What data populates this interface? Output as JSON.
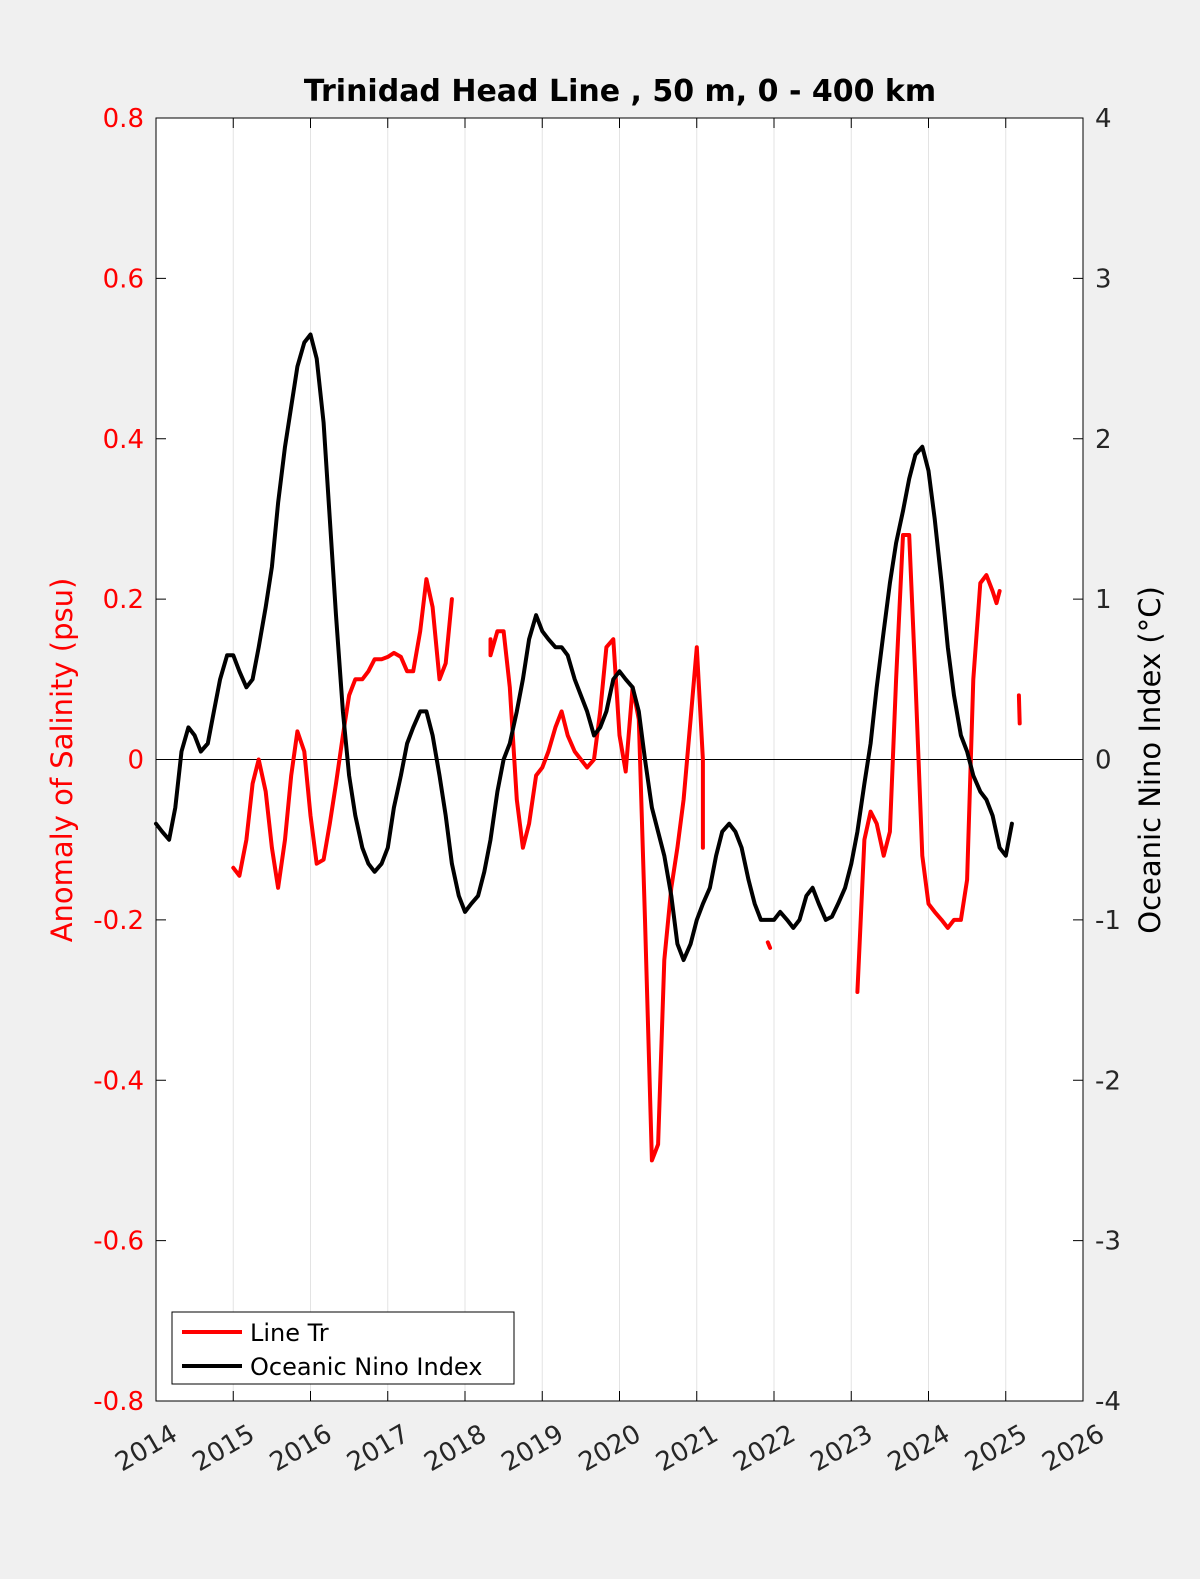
{
  "chart_data": {
    "type": "line",
    "title": "Trinidad Head Line , 50 m, 0 - 400 km",
    "xlabel": "",
    "ylabel_left": "Anomaly of Salinity (psu)",
    "ylabel_right": "Oceanic Nino Index (°C)",
    "xlim": [
      2014,
      2026
    ],
    "ylim_left": [
      -0.8,
      0.8
    ],
    "ylim_right": [
      -4,
      4
    ],
    "x_ticks": [
      2014,
      2015,
      2016,
      2017,
      2018,
      2019,
      2020,
      2021,
      2022,
      2023,
      2024,
      2025,
      2026
    ],
    "x_tick_labels": [
      "2014",
      "2015",
      "2016",
      "2017",
      "2018",
      "2019",
      "2020",
      "2021",
      "2022",
      "2023",
      "2024",
      "2025",
      "2026"
    ],
    "y_left_ticks": [
      0.8,
      0.6,
      0.4,
      0.2,
      0,
      -0.2,
      -0.4,
      -0.6,
      -0.8
    ],
    "y_left_tick_labels": [
      "0.8",
      "0.6",
      "0.4",
      "0.2",
      "0",
      "-0.2",
      "-0.4",
      "-0.6",
      "-0.8"
    ],
    "y_right_ticks": [
      4,
      3,
      2,
      1,
      0,
      -1,
      -2,
      -3,
      -4
    ],
    "y_right_tick_labels": [
      "4",
      "3",
      "2",
      "1",
      "0",
      "-1",
      "-2",
      "-3",
      "-4"
    ],
    "grid": "vertical",
    "legend_position": "bottom-left",
    "series": [
      {
        "name": "Line Tr",
        "axis": "left",
        "color": "#ff0000",
        "segments": [
          [
            [
              2015.0,
              -0.135
            ],
            [
              2015.08,
              -0.145
            ],
            [
              2015.17,
              -0.1
            ],
            [
              2015.25,
              -0.03
            ],
            [
              2015.33,
              0.0
            ],
            [
              2015.42,
              -0.04
            ],
            [
              2015.5,
              -0.11
            ],
            [
              2015.58,
              -0.16
            ],
            [
              2015.67,
              -0.1
            ],
            [
              2015.75,
              -0.02
            ],
            [
              2015.83,
              0.035
            ],
            [
              2015.92,
              0.01
            ],
            [
              2016.0,
              -0.07
            ],
            [
              2016.08,
              -0.13
            ],
            [
              2016.17,
              -0.125
            ],
            [
              2016.25,
              -0.08
            ],
            [
              2016.33,
              -0.03
            ],
            [
              2016.42,
              0.03
            ],
            [
              2016.5,
              0.08
            ],
            [
              2016.58,
              0.1
            ],
            [
              2016.67,
              0.1
            ],
            [
              2016.75,
              0.11
            ],
            [
              2016.83,
              0.125
            ],
            [
              2016.92,
              0.125
            ],
            [
              2017.0,
              0.128
            ],
            [
              2017.08,
              0.133
            ],
            [
              2017.17,
              0.128
            ],
            [
              2017.25,
              0.11
            ],
            [
              2017.33,
              0.11
            ],
            [
              2017.42,
              0.16
            ],
            [
              2017.5,
              0.225
            ],
            [
              2017.58,
              0.19
            ],
            [
              2017.67,
              0.1
            ],
            [
              2017.75,
              0.12
            ],
            [
              2017.83,
              0.2
            ]
          ],
          [
            [
              2018.33,
              0.15
            ],
            [
              2018.33,
              0.13
            ],
            [
              2018.42,
              0.16
            ],
            [
              2018.5,
              0.16
            ],
            [
              2018.58,
              0.09
            ],
            [
              2018.67,
              -0.05
            ],
            [
              2018.75,
              -0.11
            ],
            [
              2018.83,
              -0.08
            ],
            [
              2018.92,
              -0.02
            ],
            [
              2019.0,
              -0.01
            ],
            [
              2019.08,
              0.01
            ],
            [
              2019.17,
              0.04
            ],
            [
              2019.25,
              0.06
            ],
            [
              2019.33,
              0.03
            ],
            [
              2019.42,
              0.01
            ],
            [
              2019.5,
              0.0
            ],
            [
              2019.58,
              -0.01
            ],
            [
              2019.67,
              0.0
            ],
            [
              2019.75,
              0.06
            ],
            [
              2019.83,
              0.14
            ],
            [
              2019.92,
              0.15
            ],
            [
              2020.0,
              0.03
            ],
            [
              2020.08,
              -0.015
            ],
            [
              2020.17,
              0.09
            ],
            [
              2020.25,
              0.05
            ],
            [
              2020.33,
              -0.2
            ],
            [
              2020.42,
              -0.5
            ],
            [
              2020.5,
              -0.48
            ],
            [
              2020.58,
              -0.25
            ],
            [
              2020.67,
              -0.16
            ],
            [
              2020.75,
              -0.11
            ],
            [
              2020.83,
              -0.05
            ],
            [
              2020.92,
              0.05
            ],
            [
              2021.0,
              0.14
            ],
            [
              2021.08,
              0.0
            ],
            [
              2021.08,
              -0.11
            ]
          ],
          [
            [
              2021.92,
              -0.228
            ],
            [
              2021.95,
              -0.235
            ]
          ],
          [
            [
              2023.08,
              -0.29
            ],
            [
              2023.17,
              -0.1
            ],
            [
              2023.25,
              -0.065
            ],
            [
              2023.33,
              -0.08
            ],
            [
              2023.42,
              -0.12
            ],
            [
              2023.5,
              -0.09
            ],
            [
              2023.58,
              0.1
            ],
            [
              2023.67,
              0.28
            ],
            [
              2023.75,
              0.28
            ],
            [
              2023.83,
              0.1
            ],
            [
              2023.92,
              -0.12
            ],
            [
              2024.0,
              -0.18
            ],
            [
              2024.08,
              -0.19
            ],
            [
              2024.17,
              -0.2
            ],
            [
              2024.25,
              -0.21
            ],
            [
              2024.33,
              -0.2
            ],
            [
              2024.42,
              -0.2
            ],
            [
              2024.5,
              -0.15
            ],
            [
              2024.58,
              0.1
            ],
            [
              2024.67,
              0.22
            ],
            [
              2024.75,
              0.23
            ],
            [
              2024.83,
              0.21
            ],
            [
              2024.88,
              0.195
            ],
            [
              2024.92,
              0.21
            ]
          ],
          [
            [
              2025.17,
              0.08
            ],
            [
              2025.18,
              0.045
            ]
          ]
        ]
      },
      {
        "name": "Oceanic Nino Index",
        "axis": "right",
        "color": "#000000",
        "segments": [
          [
            [
              2014.0,
              -0.4
            ],
            [
              2014.08,
              -0.45
            ],
            [
              2014.17,
              -0.5
            ],
            [
              2014.25,
              -0.3
            ],
            [
              2014.33,
              0.05
            ],
            [
              2014.42,
              0.2
            ],
            [
              2014.5,
              0.15
            ],
            [
              2014.58,
              0.05
            ],
            [
              2014.67,
              0.1
            ],
            [
              2014.75,
              0.3
            ],
            [
              2014.83,
              0.5
            ],
            [
              2014.92,
              0.65
            ],
            [
              2015.0,
              0.65
            ],
            [
              2015.08,
              0.55
            ],
            [
              2015.17,
              0.45
            ],
            [
              2015.25,
              0.5
            ],
            [
              2015.33,
              0.7
            ],
            [
              2015.42,
              0.95
            ],
            [
              2015.5,
              1.2
            ],
            [
              2015.58,
              1.6
            ],
            [
              2015.67,
              1.95
            ],
            [
              2015.75,
              2.2
            ],
            [
              2015.83,
              2.45
            ],
            [
              2015.92,
              2.6
            ],
            [
              2016.0,
              2.65
            ],
            [
              2016.08,
              2.5
            ],
            [
              2016.17,
              2.1
            ],
            [
              2016.25,
              1.5
            ],
            [
              2016.33,
              0.9
            ],
            [
              2016.42,
              0.3
            ],
            [
              2016.5,
              -0.1
            ],
            [
              2016.58,
              -0.35
            ],
            [
              2016.67,
              -0.55
            ],
            [
              2016.75,
              -0.65
            ],
            [
              2016.83,
              -0.7
            ],
            [
              2016.92,
              -0.65
            ],
            [
              2017.0,
              -0.55
            ],
            [
              2017.08,
              -0.3
            ],
            [
              2017.17,
              -0.1
            ],
            [
              2017.25,
              0.1
            ],
            [
              2017.33,
              0.2
            ],
            [
              2017.42,
              0.3
            ],
            [
              2017.5,
              0.3
            ],
            [
              2017.58,
              0.15
            ],
            [
              2017.67,
              -0.1
            ],
            [
              2017.75,
              -0.35
            ],
            [
              2017.83,
              -0.65
            ],
            [
              2017.92,
              -0.85
            ],
            [
              2018.0,
              -0.95
            ],
            [
              2018.08,
              -0.9
            ],
            [
              2018.17,
              -0.85
            ],
            [
              2018.25,
              -0.7
            ],
            [
              2018.33,
              -0.5
            ],
            [
              2018.42,
              -0.2
            ],
            [
              2018.5,
              0.0
            ],
            [
              2018.58,
              0.1
            ],
            [
              2018.67,
              0.3
            ],
            [
              2018.75,
              0.5
            ],
            [
              2018.83,
              0.75
            ],
            [
              2018.92,
              0.9
            ],
            [
              2019.0,
              0.8
            ],
            [
              2019.08,
              0.75
            ],
            [
              2019.17,
              0.7
            ],
            [
              2019.25,
              0.7
            ],
            [
              2019.33,
              0.65
            ],
            [
              2019.42,
              0.5
            ],
            [
              2019.5,
              0.4
            ],
            [
              2019.58,
              0.3
            ],
            [
              2019.67,
              0.15
            ],
            [
              2019.75,
              0.2
            ],
            [
              2019.83,
              0.3
            ],
            [
              2019.92,
              0.5
            ],
            [
              2020.0,
              0.55
            ],
            [
              2020.08,
              0.5
            ],
            [
              2020.17,
              0.45
            ],
            [
              2020.25,
              0.3
            ],
            [
              2020.33,
              0.0
            ],
            [
              2020.42,
              -0.3
            ],
            [
              2020.5,
              -0.45
            ],
            [
              2020.58,
              -0.6
            ],
            [
              2020.67,
              -0.85
            ],
            [
              2020.75,
              -1.15
            ],
            [
              2020.83,
              -1.25
            ],
            [
              2020.92,
              -1.15
            ],
            [
              2021.0,
              -1.0
            ],
            [
              2021.08,
              -0.9
            ],
            [
              2021.17,
              -0.8
            ],
            [
              2021.25,
              -0.6
            ],
            [
              2021.33,
              -0.45
            ],
            [
              2021.42,
              -0.4
            ],
            [
              2021.5,
              -0.45
            ],
            [
              2021.58,
              -0.55
            ],
            [
              2021.67,
              -0.75
            ],
            [
              2021.75,
              -0.9
            ],
            [
              2021.83,
              -1.0
            ],
            [
              2021.92,
              -1.0
            ],
            [
              2022.0,
              -1.0
            ],
            [
              2022.08,
              -0.95
            ],
            [
              2022.17,
              -1.0
            ],
            [
              2022.25,
              -1.05
            ],
            [
              2022.33,
              -1.0
            ],
            [
              2022.42,
              -0.85
            ],
            [
              2022.5,
              -0.8
            ],
            [
              2022.58,
              -0.9
            ],
            [
              2022.67,
              -1.0
            ],
            [
              2022.75,
              -0.98
            ],
            [
              2022.83,
              -0.9
            ],
            [
              2022.92,
              -0.8
            ],
            [
              2023.0,
              -0.65
            ],
            [
              2023.08,
              -0.45
            ],
            [
              2023.17,
              -0.15
            ],
            [
              2023.25,
              0.1
            ],
            [
              2023.33,
              0.45
            ],
            [
              2023.42,
              0.8
            ],
            [
              2023.5,
              1.1
            ],
            [
              2023.58,
              1.35
            ],
            [
              2023.67,
              1.55
            ],
            [
              2023.75,
              1.75
            ],
            [
              2023.83,
              1.9
            ],
            [
              2023.92,
              1.95
            ],
            [
              2024.0,
              1.8
            ],
            [
              2024.08,
              1.5
            ],
            [
              2024.17,
              1.1
            ],
            [
              2024.25,
              0.7
            ],
            [
              2024.33,
              0.4
            ],
            [
              2024.42,
              0.15
            ],
            [
              2024.5,
              0.05
            ],
            [
              2024.58,
              -0.1
            ],
            [
              2024.67,
              -0.2
            ],
            [
              2024.75,
              -0.25
            ],
            [
              2024.83,
              -0.35
            ],
            [
              2024.92,
              -0.55
            ],
            [
              2025.0,
              -0.6
            ],
            [
              2025.08,
              -0.4
            ]
          ]
        ]
      }
    ]
  }
}
